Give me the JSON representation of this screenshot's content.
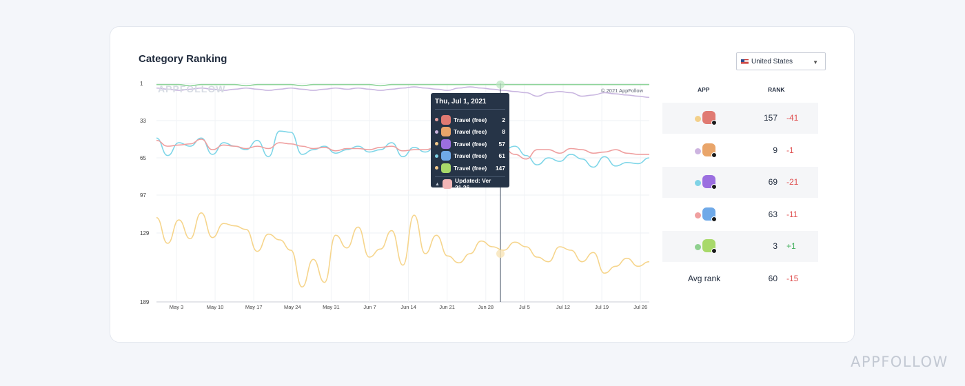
{
  "page": {
    "watermark": "APPFOLLOW"
  },
  "card": {
    "title": "Category Ranking",
    "country": "United States",
    "chart_watermark": "APPFOLLOW",
    "copyright": "© 2021 AppFollow"
  },
  "tooltip": {
    "date": "Thu, Jul 1, 2021",
    "rows": [
      {
        "name": "Travel (free)",
        "value": "2",
        "dot": "#e3a0a0",
        "icon": "#e07a72"
      },
      {
        "name": "Travel (free)",
        "value": "8",
        "dot": "#c9b3dc",
        "icon": "#e9a56a"
      },
      {
        "name": "Travel (free)",
        "value": "57",
        "dot": "#f2c98c",
        "icon": "#9b6fe0"
      },
      {
        "name": "Travel (free)",
        "value": "61",
        "dot": "#7fd3e6",
        "icon": "#6fa9e8"
      },
      {
        "name": "Travel (free)",
        "value": "147",
        "dot": "#f2c98c",
        "icon": "#a8d96a"
      }
    ],
    "updated": "Updated: Ver 21.26",
    "updated_icon": "#f3b6b6"
  },
  "table": {
    "headers": {
      "app": "APP",
      "rank": "RANK"
    },
    "rows": [
      {
        "dot": "#f3d08a",
        "icon": "#e07a72",
        "rank": "157",
        "change": "-41",
        "change_color": "#e05252"
      },
      {
        "dot": "#cdb4e0",
        "icon": "#e9a56a",
        "rank": "9",
        "change": "-1",
        "change_color": "#e05252"
      },
      {
        "dot": "#7fd3e6",
        "icon": "#9b6fe0",
        "rank": "69",
        "change": "-21",
        "change_color": "#e05252"
      },
      {
        "dot": "#f0a0a0",
        "icon": "#6fa9e8",
        "rank": "63",
        "change": "-11",
        "change_color": "#e05252"
      },
      {
        "dot": "#8fd08f",
        "icon": "#a8d96a",
        "rank": "3",
        "change": "+1",
        "change_color": "#3fae5a"
      }
    ],
    "avg": {
      "label": "Avg rank",
      "rank": "60",
      "change": "-15",
      "change_color": "#e05252"
    }
  },
  "chart_data": {
    "type": "line",
    "y_ticks": [
      "1",
      "33",
      "65",
      "97",
      "129",
      "189"
    ],
    "x_ticks": [
      "May 3",
      "May 10",
      "May 17",
      "May 24",
      "May 31",
      "Jun 7",
      "Jun 14",
      "Jun 21",
      "Jun 28",
      "Jul 5",
      "Jul 12",
      "Jul 19",
      "Jul 26"
    ],
    "ylim": [
      1,
      189
    ],
    "y_inverted": true,
    "series": [
      {
        "color": "#8fd49a",
        "values": [
          2,
          2,
          2,
          3,
          2,
          2,
          2,
          2,
          3,
          2,
          2,
          2,
          2,
          3,
          2,
          2,
          2,
          2,
          2,
          2,
          3,
          2,
          2,
          2,
          2,
          2,
          2,
          2,
          2,
          2,
          2,
          2,
          2,
          2,
          2,
          2,
          2,
          2,
          2,
          2,
          2,
          2,
          2,
          2,
          2
        ]
      },
      {
        "color": "#c9b6e0",
        "values": [
          5,
          6,
          7,
          6,
          5,
          6,
          7,
          6,
          5,
          6,
          7,
          6,
          5,
          6,
          7,
          6,
          5,
          6,
          5,
          6,
          7,
          6,
          5,
          4,
          5,
          6,
          7,
          5,
          4,
          5,
          6,
          7,
          8,
          9,
          12,
          9,
          8,
          9,
          12,
          11,
          9,
          10,
          11,
          12,
          13
        ]
      },
      {
        "color": "#7fd6e8",
        "values": [
          48,
          63,
          52,
          55,
          48,
          62,
          52,
          55,
          58,
          50,
          64,
          42,
          43,
          62,
          58,
          55,
          61,
          58,
          55,
          60,
          58,
          52,
          64,
          56,
          60,
          55,
          63,
          50,
          61,
          66,
          56,
          58,
          55,
          63,
          71,
          65,
          68,
          62,
          66,
          73,
          64,
          72,
          69,
          70,
          65
        ]
      },
      {
        "color": "#ef9f9f",
        "values": [
          50,
          55,
          54,
          53,
          49,
          58,
          54,
          55,
          57,
          55,
          57,
          52,
          53,
          55,
          57,
          56,
          59,
          57,
          57,
          58,
          56,
          55,
          59,
          58,
          58,
          56,
          60,
          55,
          58,
          62,
          59,
          57,
          62,
          66,
          58,
          58,
          61,
          57,
          58,
          61,
          60,
          58,
          61,
          62,
          62
        ]
      },
      {
        "color": "#f6d58c",
        "values": [
          116,
          138,
          118,
          134,
          112,
          133,
          121,
          123,
          126,
          145,
          130,
          135,
          144,
          176,
          152,
          172,
          131,
          142,
          124,
          150,
          143,
          127,
          157,
          114,
          147,
          131,
          149,
          155,
          147,
          136,
          141,
          144,
          137,
          141,
          150,
          154,
          141,
          144,
          154,
          146,
          164,
          158,
          151,
          158,
          154
        ]
      }
    ]
  }
}
